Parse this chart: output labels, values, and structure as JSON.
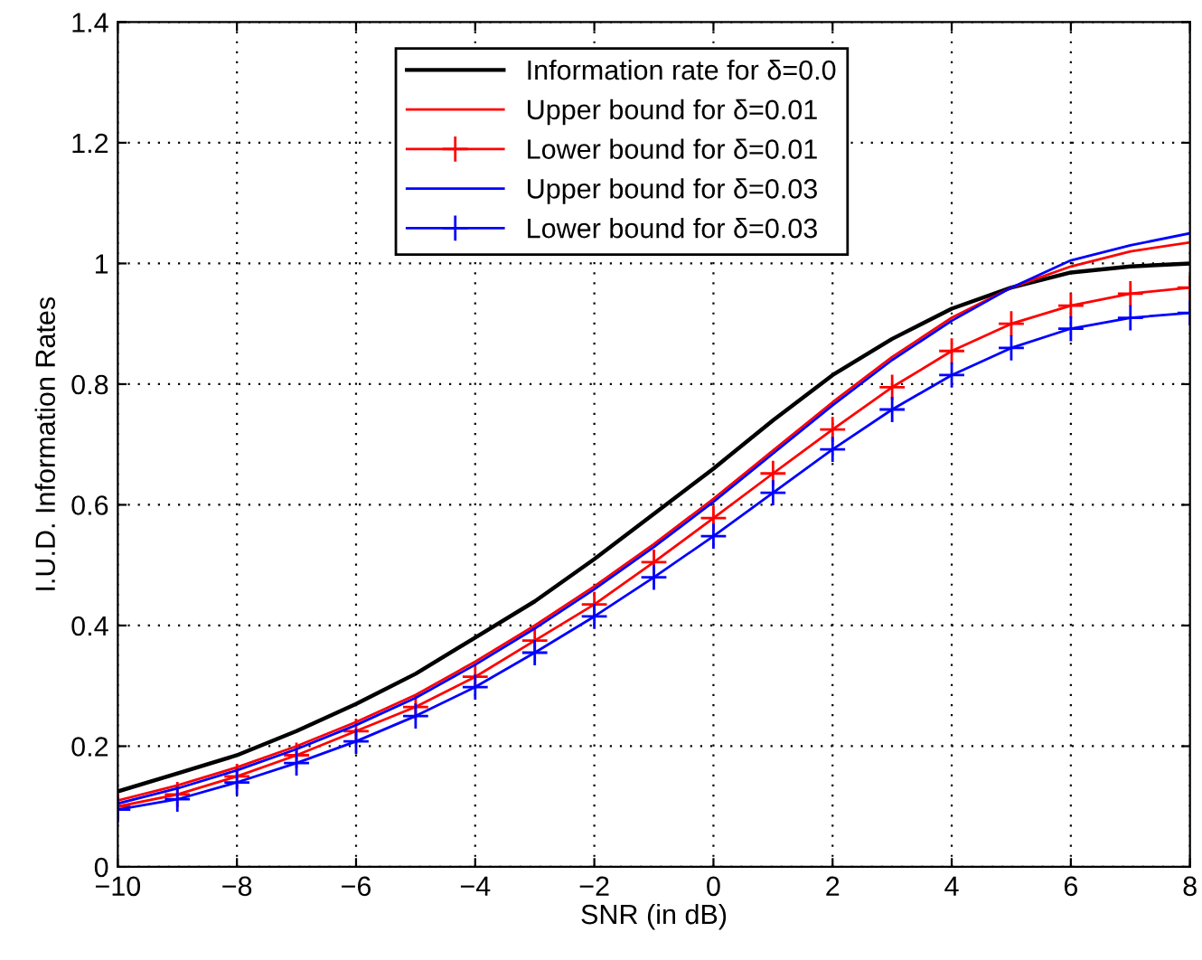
{
  "chart_data": {
    "type": "line",
    "xlabel": "SNR (in dB)",
    "ylabel": "I.U.D. Information Rates",
    "x": [
      -10,
      -9,
      -8,
      -7,
      -6,
      -5,
      -4,
      -3,
      -2,
      -1,
      0,
      1,
      2,
      3,
      4,
      5,
      6,
      7,
      8
    ],
    "series": [
      {
        "name": "Information rate for δ=0.0",
        "color": "#000000",
        "marker": "none",
        "values": [
          0.125,
          0.155,
          0.185,
          0.225,
          0.27,
          0.32,
          0.38,
          0.44,
          0.51,
          0.585,
          0.66,
          0.74,
          0.815,
          0.875,
          0.925,
          0.96,
          0.985,
          0.995,
          1.0
        ]
      },
      {
        "name": "Upper bound for δ=0.01",
        "color": "#ff0000",
        "marker": "none",
        "values": [
          0.11,
          0.135,
          0.165,
          0.2,
          0.24,
          0.285,
          0.34,
          0.4,
          0.465,
          0.535,
          0.61,
          0.69,
          0.77,
          0.845,
          0.91,
          0.96,
          0.995,
          1.02,
          1.035
        ]
      },
      {
        "name": "Lower bound for δ=0.01",
        "color": "#ff0000",
        "marker": "cross",
        "values": [
          0.1,
          0.12,
          0.15,
          0.185,
          0.225,
          0.265,
          0.315,
          0.375,
          0.435,
          0.505,
          0.578,
          0.652,
          0.725,
          0.795,
          0.855,
          0.9,
          0.93,
          0.95,
          0.96
        ]
      },
      {
        "name": "Upper bound for δ=0.03",
        "color": "#0000ff",
        "marker": "none",
        "values": [
          0.105,
          0.13,
          0.16,
          0.195,
          0.235,
          0.28,
          0.335,
          0.395,
          0.46,
          0.53,
          0.605,
          0.685,
          0.765,
          0.84,
          0.905,
          0.96,
          1.005,
          1.03,
          1.05
        ]
      },
      {
        "name": "Lower bound for δ=0.03",
        "color": "#0000ff",
        "marker": "cross",
        "values": [
          0.095,
          0.112,
          0.14,
          0.172,
          0.208,
          0.25,
          0.298,
          0.355,
          0.415,
          0.48,
          0.548,
          0.62,
          0.692,
          0.758,
          0.815,
          0.86,
          0.892,
          0.91,
          0.918
        ]
      }
    ],
    "xlim": [
      -10,
      8
    ],
    "xticks": [
      {
        "value": -10,
        "label": "−10"
      },
      {
        "value": -8,
        "label": "−8"
      },
      {
        "value": -6,
        "label": "−6"
      },
      {
        "value": -4,
        "label": "−4"
      },
      {
        "value": -2,
        "label": "−2"
      },
      0,
      2,
      4,
      6,
      8
    ],
    "ylim": [
      0,
      1.4
    ],
    "yticks": [
      0,
      0.2,
      0.4,
      0.6,
      0.8,
      1,
      1.2,
      1.4
    ],
    "grid": true,
    "legend": "top",
    "line_style": "solid"
  }
}
